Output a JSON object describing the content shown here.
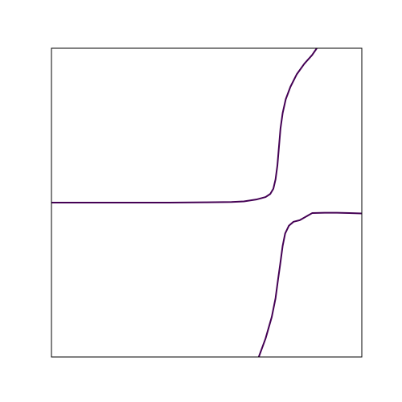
{
  "chart_data": {
    "type": "line",
    "title": "",
    "xlabel": "",
    "ylabel": "",
    "grid": false,
    "legend": "none",
    "xlim": [
      0,
      1
    ],
    "ylim": [
      0,
      1
    ],
    "colors": {
      "line": "#440154",
      "frame": "#000000",
      "background": "#ffffff"
    },
    "series": [
      {
        "points": [
          [
            0.0,
            0.5
          ],
          [
            0.2,
            0.5
          ],
          [
            0.38,
            0.5
          ],
          [
            0.5,
            0.501
          ],
          [
            0.58,
            0.502
          ],
          [
            0.62,
            0.504
          ],
          [
            0.66,
            0.51
          ],
          [
            0.69,
            0.518
          ],
          [
            0.705,
            0.528
          ],
          [
            0.715,
            0.545
          ],
          [
            0.722,
            0.575
          ],
          [
            0.728,
            0.62
          ],
          [
            0.733,
            0.68
          ],
          [
            0.738,
            0.74
          ],
          [
            0.745,
            0.79
          ],
          [
            0.755,
            0.835
          ],
          [
            0.77,
            0.875
          ],
          [
            0.79,
            0.915
          ],
          [
            0.815,
            0.95
          ],
          [
            0.84,
            0.978
          ],
          [
            0.855,
            1.0
          ]
        ]
      },
      {
        "points": [
          [
            0.668,
            0.0
          ],
          [
            0.69,
            0.06
          ],
          [
            0.71,
            0.13
          ],
          [
            0.722,
            0.19
          ],
          [
            0.73,
            0.25
          ],
          [
            0.737,
            0.3
          ],
          [
            0.745,
            0.36
          ],
          [
            0.753,
            0.4
          ],
          [
            0.765,
            0.425
          ],
          [
            0.78,
            0.438
          ],
          [
            0.8,
            0.443
          ],
          [
            0.84,
            0.466
          ],
          [
            0.88,
            0.467
          ],
          [
            0.92,
            0.467
          ],
          [
            0.96,
            0.466
          ],
          [
            1.0,
            0.465
          ]
        ]
      }
    ]
  }
}
